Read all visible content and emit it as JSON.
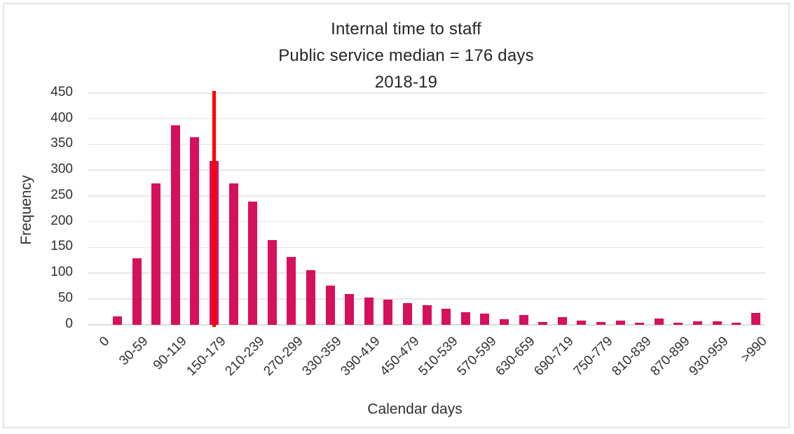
{
  "window": {
    "background": "#FFFFFF",
    "border_color": "#E4E4E4"
  },
  "chart_data": {
    "type": "bar",
    "title_lines": [
      "Internal time to staff",
      "Public service median = 176 days",
      "2018-19"
    ],
    "xlabel": "Calendar days",
    "ylabel": "Frequency",
    "ylim": [
      0,
      450
    ],
    "yticks": [
      0,
      50,
      100,
      150,
      200,
      250,
      300,
      350,
      400,
      450
    ],
    "grid": true,
    "legend": false,
    "num_slots": 35,
    "x_tick_labels": [
      "0",
      "30-59",
      "90-119",
      "150-179",
      "210-239",
      "270-299",
      "330-359",
      "390-419",
      "450-479",
      "510-539",
      "570-599",
      "630-659",
      "690-719",
      "750-779",
      "810-839",
      "870-899",
      "930-959",
      ">990"
    ],
    "x_tick_slot_indices": [
      0,
      2,
      4,
      6,
      8,
      10,
      12,
      14,
      16,
      18,
      20,
      22,
      24,
      26,
      28,
      30,
      32,
      34
    ],
    "values": [
      0,
      15,
      128,
      275,
      388,
      364,
      318,
      274,
      239,
      164,
      131,
      106,
      76,
      59,
      52,
      49,
      42,
      38,
      31,
      24,
      21,
      10,
      19,
      5,
      14,
      7,
      5,
      8,
      4,
      11,
      4,
      6,
      6,
      4,
      22
    ],
    "median_line": {
      "days": 176,
      "slot": 6.5,
      "color": "#FF0000"
    },
    "bar_color": "#D5115C",
    "gridline_color": "#E6E6E6",
    "axis_line_color": "#DADADA",
    "text_color": "#303030"
  }
}
